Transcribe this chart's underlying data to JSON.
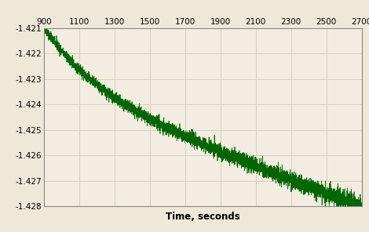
{
  "x_min": 900,
  "x_max": 2700,
  "y_min": -1.428,
  "y_max": -1.421,
  "x_ticks": [
    900,
    1100,
    1300,
    1500,
    1700,
    1900,
    2100,
    2300,
    2500,
    2700
  ],
  "y_ticks": [
    -1.428,
    -1.427,
    -1.426,
    -1.425,
    -1.424,
    -1.423,
    -1.422,
    -1.421
  ],
  "xlabel": "Time, seconds",
  "line_color": "#006600",
  "background_color": "#ede8d8",
  "plot_bg_color": "#f2ede0",
  "grid_color": "#d8d0b8",
  "border_color": "#888880",
  "noise_amplitude": 0.00018,
  "seed": 42,
  "curve_exp": 1.5
}
